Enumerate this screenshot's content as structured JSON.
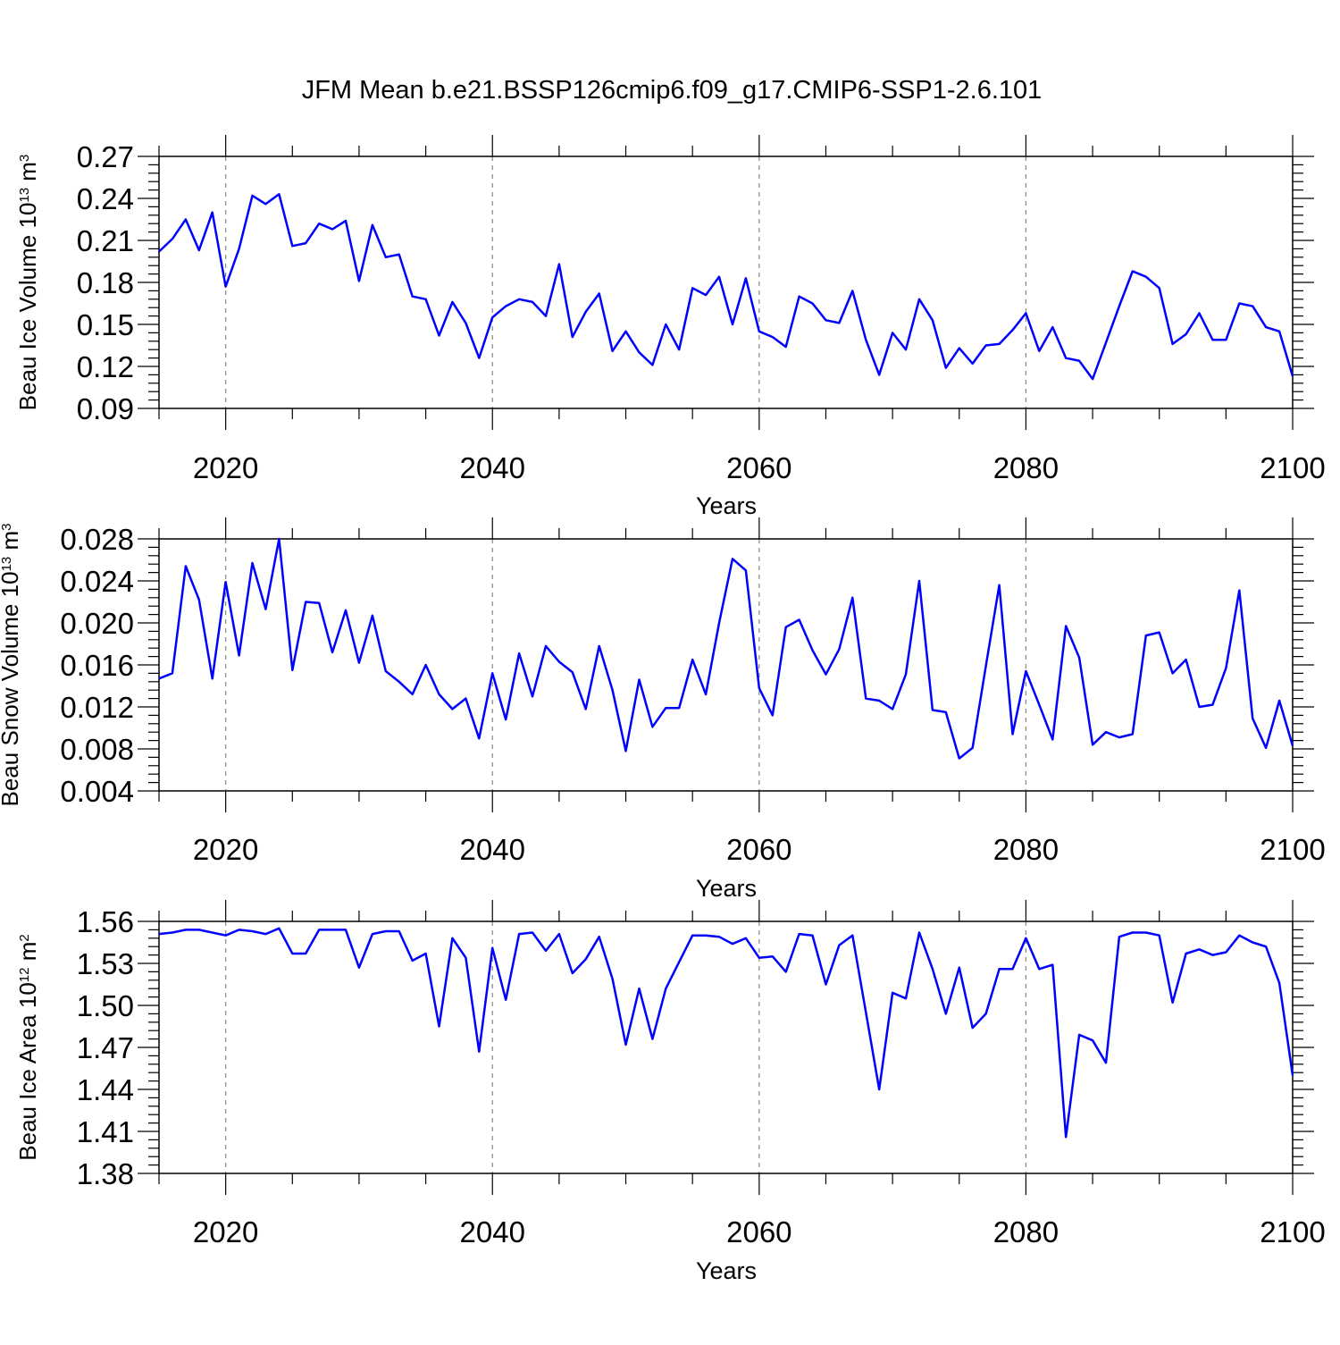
{
  "title": "JFM Mean b.e21.BSSP126cmip6.f09_g17.CMIP6-SSP1-2.6.101",
  "chart_data": [
    {
      "type": "line",
      "title": "JFM Mean b.e21.BSSP126cmip6.f09_g17.CMIP6-SSP1-2.6.101",
      "xlabel": "Years",
      "ylabel": "Beau Ice Volume",
      "ylabel_unit_base": "10",
      "ylabel_unit_exp": "13",
      "ylabel_unit": "m",
      "ylabel_unit_pow": "3",
      "xlim": [
        2015,
        2100
      ],
      "ylim": [
        0.09,
        0.27
      ],
      "xticks": [
        2020,
        2040,
        2060,
        2080,
        2100
      ],
      "yticks": [
        "0.27",
        "0.24",
        "0.21",
        "0.18",
        "0.15",
        "0.12",
        "0.09"
      ],
      "color": "#0000ff",
      "x": [
        2015,
        2016,
        2017,
        2018,
        2019,
        2020,
        2021,
        2022,
        2023,
        2024,
        2025,
        2026,
        2027,
        2028,
        2029,
        2030,
        2031,
        2032,
        2033,
        2034,
        2035,
        2036,
        2037,
        2038,
        2039,
        2040,
        2041,
        2042,
        2043,
        2044,
        2045,
        2046,
        2047,
        2048,
        2049,
        2050,
        2051,
        2052,
        2053,
        2054,
        2055,
        2056,
        2057,
        2058,
        2059,
        2060,
        2061,
        2062,
        2063,
        2064,
        2065,
        2066,
        2067,
        2068,
        2069,
        2070,
        2071,
        2072,
        2073,
        2074,
        2075,
        2076,
        2077,
        2078,
        2079,
        2080,
        2081,
        2082,
        2083,
        2084,
        2085,
        2086,
        2087,
        2088,
        2089,
        2090,
        2091,
        2092,
        2093,
        2094,
        2095,
        2096,
        2097,
        2098,
        2099,
        2100
      ],
      "values": [
        0.202,
        0.211,
        0.225,
        0.203,
        0.23,
        0.177,
        0.204,
        0.242,
        0.236,
        0.243,
        0.206,
        0.208,
        0.222,
        0.218,
        0.224,
        0.181,
        0.221,
        0.198,
        0.2,
        0.17,
        0.168,
        0.142,
        0.166,
        0.151,
        0.126,
        0.155,
        0.163,
        0.168,
        0.166,
        0.156,
        0.193,
        0.141,
        0.159,
        0.172,
        0.131,
        0.145,
        0.13,
        0.121,
        0.15,
        0.132,
        0.176,
        0.171,
        0.184,
        0.15,
        0.183,
        0.145,
        0.141,
        0.134,
        0.17,
        0.165,
        0.153,
        0.151,
        0.174,
        0.139,
        0.114,
        0.144,
        0.132,
        0.168,
        0.153,
        0.119,
        0.133,
        0.122,
        0.135,
        0.136,
        0.146,
        0.158,
        0.131,
        0.148,
        0.126,
        0.124,
        0.111,
        0.137,
        0.163,
        0.188,
        0.184,
        0.176,
        0.136,
        0.143,
        0.158,
        0.139,
        0.139,
        0.165,
        0.163,
        0.148,
        0.145,
        0.113
      ]
    },
    {
      "type": "line",
      "xlabel": "Years",
      "ylabel": "Beau Snow Volume",
      "ylabel_unit_base": "10",
      "ylabel_unit_exp": "13",
      "ylabel_unit": "m",
      "ylabel_unit_pow": "3",
      "xlim": [
        2015,
        2100
      ],
      "ylim": [
        0.004,
        0.028
      ],
      "xticks": [
        2020,
        2040,
        2060,
        2080,
        2100
      ],
      "yticks": [
        "0.028",
        "0.024",
        "0.020",
        "0.016",
        "0.012",
        "0.008",
        "0.004"
      ],
      "color": "#0000ff",
      "x": [
        2015,
        2016,
        2017,
        2018,
        2019,
        2020,
        2021,
        2022,
        2023,
        2024,
        2025,
        2026,
        2027,
        2028,
        2029,
        2030,
        2031,
        2032,
        2033,
        2034,
        2035,
        2036,
        2037,
        2038,
        2039,
        2040,
        2041,
        2042,
        2043,
        2044,
        2045,
        2046,
        2047,
        2048,
        2049,
        2050,
        2051,
        2052,
        2053,
        2054,
        2055,
        2056,
        2057,
        2058,
        2059,
        2060,
        2061,
        2062,
        2063,
        2064,
        2065,
        2066,
        2067,
        2068,
        2069,
        2070,
        2071,
        2072,
        2073,
        2074,
        2075,
        2076,
        2077,
        2078,
        2079,
        2080,
        2081,
        2082,
        2083,
        2084,
        2085,
        2086,
        2087,
        2088,
        2089,
        2090,
        2091,
        2092,
        2093,
        2094,
        2095,
        2096,
        2097,
        2098,
        2099,
        2100
      ],
      "values": [
        0.0147,
        0.0152,
        0.0254,
        0.0222,
        0.0147,
        0.0239,
        0.0169,
        0.0257,
        0.0213,
        0.028,
        0.0155,
        0.022,
        0.0219,
        0.0172,
        0.0212,
        0.0162,
        0.0207,
        0.0154,
        0.0144,
        0.0132,
        0.016,
        0.0132,
        0.0118,
        0.0128,
        0.009,
        0.0152,
        0.0108,
        0.0171,
        0.013,
        0.0178,
        0.0163,
        0.0153,
        0.0118,
        0.0178,
        0.0136,
        0.0078,
        0.0146,
        0.0101,
        0.0119,
        0.0119,
        0.0165,
        0.0132,
        0.02,
        0.0261,
        0.025,
        0.0138,
        0.0112,
        0.0196,
        0.0203,
        0.0174,
        0.0151,
        0.0175,
        0.0224,
        0.0128,
        0.0126,
        0.0118,
        0.0151,
        0.024,
        0.0117,
        0.0115,
        0.0071,
        0.0081,
        0.0159,
        0.0236,
        0.0094,
        0.0154,
        0.0122,
        0.0089,
        0.0197,
        0.0167,
        0.0084,
        0.0096,
        0.0091,
        0.0094,
        0.0188,
        0.0191,
        0.0152,
        0.0165,
        0.012,
        0.0122,
        0.0157,
        0.0231,
        0.0109,
        0.0081,
        0.0126,
        0.0083
      ]
    },
    {
      "type": "line",
      "xlabel": "Years",
      "ylabel": "Beau Ice Area",
      "ylabel_unit_base": "10",
      "ylabel_unit_exp": "12",
      "ylabel_unit": "m",
      "ylabel_unit_pow": "2",
      "xlim": [
        2015,
        2100
      ],
      "ylim": [
        1.38,
        1.56
      ],
      "xticks": [
        2020,
        2040,
        2060,
        2080,
        2100
      ],
      "yticks": [
        "1.56",
        "1.53",
        "1.50",
        "1.47",
        "1.44",
        "1.41",
        "1.38"
      ],
      "color": "#0000ff",
      "x": [
        2015,
        2016,
        2017,
        2018,
        2019,
        2020,
        2021,
        2022,
        2023,
        2024,
        2025,
        2026,
        2027,
        2028,
        2029,
        2030,
        2031,
        2032,
        2033,
        2034,
        2035,
        2036,
        2037,
        2038,
        2039,
        2040,
        2041,
        2042,
        2043,
        2044,
        2045,
        2046,
        2047,
        2048,
        2049,
        2050,
        2051,
        2052,
        2053,
        2054,
        2055,
        2056,
        2057,
        2058,
        2059,
        2060,
        2061,
        2062,
        2063,
        2064,
        2065,
        2066,
        2067,
        2068,
        2069,
        2070,
        2071,
        2072,
        2073,
        2074,
        2075,
        2076,
        2077,
        2078,
        2079,
        2080,
        2081,
        2082,
        2083,
        2084,
        2085,
        2086,
        2087,
        2088,
        2089,
        2090,
        2091,
        2092,
        2093,
        2094,
        2095,
        2096,
        2097,
        2098,
        2099,
        2100
      ],
      "values": [
        1.551,
        1.552,
        1.554,
        1.554,
        1.552,
        1.55,
        1.554,
        1.553,
        1.551,
        1.555,
        1.537,
        1.537,
        1.554,
        1.554,
        1.554,
        1.527,
        1.551,
        1.553,
        1.553,
        1.532,
        1.537,
        1.485,
        1.548,
        1.534,
        1.467,
        1.541,
        1.504,
        1.551,
        1.552,
        1.539,
        1.551,
        1.523,
        1.533,
        1.549,
        1.519,
        1.472,
        1.512,
        1.476,
        1.512,
        1.531,
        1.55,
        1.55,
        1.549,
        1.544,
        1.548,
        1.534,
        1.535,
        1.524,
        1.551,
        1.55,
        1.515,
        1.543,
        1.55,
        1.495,
        1.44,
        1.509,
        1.505,
        1.552,
        1.526,
        1.494,
        1.527,
        1.484,
        1.494,
        1.526,
        1.526,
        1.548,
        1.526,
        1.529,
        1.406,
        1.479,
        1.475,
        1.459,
        1.549,
        1.552,
        1.552,
        1.55,
        1.502,
        1.537,
        1.54,
        1.536,
        1.538,
        1.55,
        1.545,
        1.542,
        1.516,
        1.45
      ]
    }
  ]
}
